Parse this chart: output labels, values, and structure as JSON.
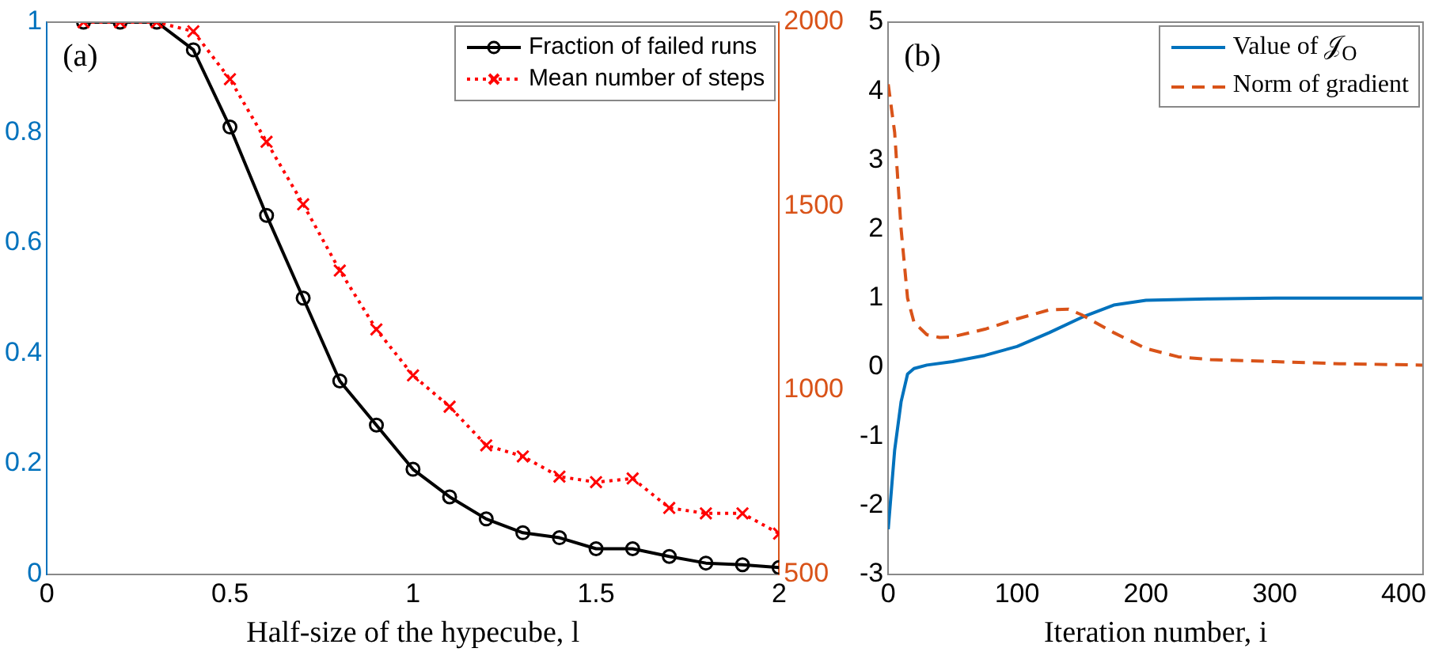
{
  "chart_data": [
    {
      "type": "line",
      "xlabel": "Half-size of the hypecube, l",
      "annotations": [
        "(a)"
      ],
      "legend": "top right",
      "grid": false,
      "x": [
        0.1,
        0.2,
        0.3,
        0.4,
        0.5,
        0.6,
        0.7,
        0.8,
        0.9,
        1.0,
        1.1,
        1.2,
        1.3,
        1.4,
        1.5,
        1.6,
        1.7,
        1.8,
        1.9,
        2.0
      ],
      "xlim": [
        0,
        2
      ],
      "xticks": [
        0,
        0.5,
        1,
        1.5,
        2
      ],
      "ylim": [
        0,
        1
      ],
      "yticks": [
        0,
        0.2,
        0.4,
        0.6,
        0.8,
        1
      ],
      "y2lim": [
        500,
        2000
      ],
      "y2ticks": [
        500,
        1000,
        1500,
        2000
      ],
      "series": [
        {
          "name": "Fraction of failed runs",
          "color": "#000000",
          "marker": "circle",
          "line_style": "solid",
          "values": [
            1,
            1,
            1,
            0.95,
            0.81,
            0.65,
            0.5,
            0.35,
            0.27,
            0.19,
            0.14,
            0.1,
            0.075,
            0.066,
            0.046,
            0.046,
            0.032,
            0.02,
            0.017,
            0.012
          ]
        },
        {
          "name": "Mean number of steps",
          "color": "#ff0000",
          "marker": "cross",
          "line_style": "dotted",
          "axis": "y2",
          "values": [
            2000,
            2000,
            2000,
            1975,
            1845,
            1675,
            1505,
            1325,
            1165,
            1040,
            955,
            850,
            820,
            765,
            750,
            760,
            680,
            665,
            665,
            610
          ]
        }
      ]
    },
    {
      "type": "line",
      "xlabel": "Iteration number, i",
      "annotations": [
        "(b)"
      ],
      "legend": "top right",
      "grid": false,
      "xlim": [
        0,
        415
      ],
      "xticks": [
        0,
        100,
        200,
        300,
        400
      ],
      "ylim": [
        -3,
        5
      ],
      "yticks": [
        -3,
        -2,
        -1,
        0,
        1,
        2,
        3,
        4,
        5
      ],
      "series": [
        {
          "name": "Value of 𝒥$_{O}$",
          "color": "#0072bd",
          "marker": "none",
          "line_style": "solid",
          "x": [
            0,
            5,
            10,
            15,
            20,
            30,
            50,
            75,
            100,
            125,
            150,
            175,
            200,
            250,
            300,
            415
          ],
          "values": [
            -2.35,
            -1.2,
            -0.5,
            -0.1,
            -0.02,
            0.03,
            0.08,
            0.17,
            0.3,
            0.5,
            0.72,
            0.9,
            0.97,
            0.99,
            1,
            1
          ]
        },
        {
          "name": "Norm of gradient",
          "color": "#d95319",
          "marker": "none",
          "line_style": "dashed",
          "x": [
            0,
            5,
            10,
            15,
            20,
            30,
            40,
            50,
            75,
            100,
            125,
            140,
            150,
            175,
            200,
            225,
            250,
            300,
            350,
            415
          ],
          "values": [
            4.1,
            3.4,
            2.0,
            1.0,
            0.65,
            0.47,
            0.43,
            0.44,
            0.55,
            0.7,
            0.83,
            0.84,
            0.76,
            0.5,
            0.27,
            0.15,
            0.11,
            0.08,
            0.05,
            0.03
          ]
        }
      ]
    }
  ]
}
